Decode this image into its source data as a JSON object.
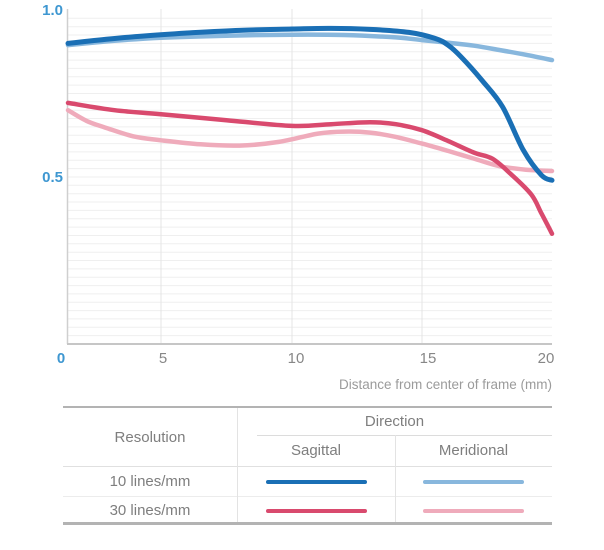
{
  "page": {
    "background": "#ffffff"
  },
  "chart": {
    "y_ticks": [
      {
        "label": "1.0",
        "value": 1.0
      },
      {
        "label": "0.5",
        "value": 0.5
      }
    ],
    "x_ticks": [
      {
        "label": "0",
        "mm": 0,
        "accent": true
      },
      {
        "label": "5",
        "mm": 5,
        "accent": false
      },
      {
        "label": "10",
        "mm": 10,
        "accent": false
      },
      {
        "label": "15",
        "mm": 15,
        "accent": false
      },
      {
        "label": "20",
        "mm": 20,
        "accent": false
      }
    ],
    "axis_title": "Distance from center of frame (mm)",
    "colors": {
      "tick_accent": "#3e97d1",
      "tick_gray": "#878787",
      "axis_title": "#9b9b9b",
      "grid_h": "#efefef",
      "grid_v": "#e4e4e4",
      "axis_line": "#cfcfcf",
      "baseline": "#c6c6c6"
    }
  },
  "chart_data": {
    "type": "line",
    "title": "",
    "xlabel": "Distance from center of frame (mm)",
    "ylabel": "",
    "xlim": [
      0,
      20
    ],
    "ylim": [
      0,
      1.0
    ],
    "x_tick_values": [
      0,
      5,
      10,
      15,
      20
    ],
    "y_tick_values": [
      0.5,
      1.0
    ],
    "grid": {
      "horizontal_step": 0.025,
      "vertical_step": 5,
      "grid_on": true
    },
    "legend_position": "bottom-table",
    "series": [
      {
        "name": "10 lines/mm Sagittal",
        "color": "#1a6fb5",
        "stroke_width": 5,
        "points": [
          [
            0,
            0.9
          ],
          [
            2,
            0.912
          ],
          [
            4,
            0.922
          ],
          [
            6,
            0.931
          ],
          [
            8,
            0.939
          ],
          [
            10,
            0.943
          ],
          [
            11.5,
            0.945
          ],
          [
            13,
            0.942
          ],
          [
            14.5,
            0.933
          ],
          [
            15.5,
            0.915
          ],
          [
            16,
            0.895
          ],
          [
            16.5,
            0.86
          ],
          [
            17.3,
            0.79
          ],
          [
            18.1,
            0.71
          ],
          [
            18.9,
            0.58
          ],
          [
            19.6,
            0.505
          ],
          [
            20,
            0.49
          ]
        ]
      },
      {
        "name": "10 lines/mm Meridional",
        "color": "#88b7dd",
        "stroke_width": 4.5,
        "points": [
          [
            0,
            0.895
          ],
          [
            2.5,
            0.908
          ],
          [
            5,
            0.917
          ],
          [
            7.5,
            0.923
          ],
          [
            10,
            0.926
          ],
          [
            12,
            0.925
          ],
          [
            14,
            0.918
          ],
          [
            15,
            0.91
          ],
          [
            16,
            0.902
          ],
          [
            17,
            0.893
          ],
          [
            18,
            0.88
          ],
          [
            19,
            0.866
          ],
          [
            20,
            0.85
          ]
        ]
      },
      {
        "name": "30 lines/mm Sagittal",
        "color": "#d94a6e",
        "stroke_width": 4.5,
        "points": [
          [
            0,
            0.722
          ],
          [
            2.5,
            0.7
          ],
          [
            5,
            0.688
          ],
          [
            7.5,
            0.67
          ],
          [
            10,
            0.653
          ],
          [
            11.5,
            0.658
          ],
          [
            13,
            0.664
          ],
          [
            14,
            0.658
          ],
          [
            15,
            0.64
          ],
          [
            16,
            0.608
          ],
          [
            17,
            0.573
          ],
          [
            17.7,
            0.555
          ],
          [
            18.4,
            0.51
          ],
          [
            19.2,
            0.448
          ],
          [
            19.6,
            0.39
          ],
          [
            20,
            0.33
          ]
        ]
      },
      {
        "name": "30 lines/mm Meridional",
        "color": "#efabbb",
        "stroke_width": 4.5,
        "points": [
          [
            0,
            0.7
          ],
          [
            1,
            0.668
          ],
          [
            2,
            0.648
          ],
          [
            3.5,
            0.622
          ],
          [
            5,
            0.61
          ],
          [
            6.5,
            0.598
          ],
          [
            8,
            0.594
          ],
          [
            9.5,
            0.605
          ],
          [
            11,
            0.63
          ],
          [
            12,
            0.636
          ],
          [
            13,
            0.633
          ],
          [
            14,
            0.62
          ],
          [
            15,
            0.6
          ],
          [
            16,
            0.578
          ],
          [
            17,
            0.555
          ],
          [
            18,
            0.532
          ],
          [
            19,
            0.522
          ],
          [
            20,
            0.518
          ]
        ]
      }
    ]
  },
  "legend_table": {
    "resolution_header": "Resolution",
    "direction_header": "Direction",
    "sagittal_header": "Sagittal",
    "meridional_header": "Meridional",
    "rows": [
      {
        "label": "10 lines/mm",
        "sagittal_color": "#1a6fb5",
        "meridional_color": "#88b7dd"
      },
      {
        "label": "30 lines/mm",
        "sagittal_color": "#d94a6e",
        "meridional_color": "#efabbb"
      }
    ]
  }
}
